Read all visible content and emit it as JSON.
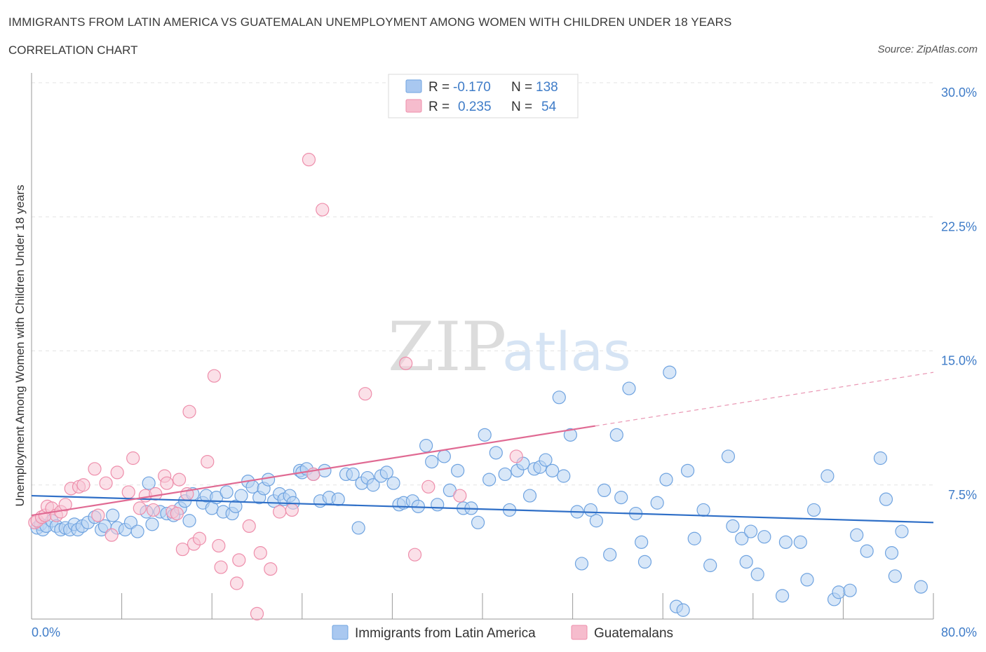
{
  "header": {
    "title": "IMMIGRANTS FROM LATIN AMERICA VS GUATEMALAN UNEMPLOYMENT AMONG WOMEN WITH CHILDREN UNDER 18 YEARS",
    "subtitle": "CORRELATION CHART",
    "source": "Source: ZipAtlas.com"
  },
  "watermark": {
    "zip": "ZIP",
    "atlas": "atlas"
  },
  "legend": {
    "rows": [
      {
        "r_label": "R =",
        "r_value": "-0.170",
        "n_label": "N =",
        "n_value": "138",
        "color": "#a9c8f0"
      },
      {
        "r_label": "R =",
        "r_value": "0.235",
        "n_label": "N =",
        "n_value": "54",
        "color": "#f6bccd"
      }
    ]
  },
  "bottom_legend": {
    "items": [
      {
        "label": "Immigrants from Latin America",
        "color": "#a9c8f0"
      },
      {
        "label": "Guatemalans",
        "color": "#f6bccd"
      }
    ]
  },
  "chart_data": {
    "type": "scatter",
    "ylabel": "Unemployment Among Women with Children Under 18 years",
    "xlabel": "",
    "xlim": [
      0,
      80
    ],
    "ylim": [
      0,
      30
    ],
    "x_tick_labels": [
      {
        "value": 0,
        "label": "0.0%"
      },
      {
        "value": 80,
        "label": "80.0%"
      }
    ],
    "y_tick_labels": [
      {
        "value": 7.5,
        "label": "7.5%"
      },
      {
        "value": 15,
        "label": "15.0%"
      },
      {
        "value": 22.5,
        "label": "22.5%"
      },
      {
        "value": 30,
        "label": "30.0%"
      }
    ],
    "grid": true,
    "legend_placement": "top-center",
    "series": [
      {
        "name": "Immigrants from Latin America",
        "color": "#6fa3e0",
        "fill": "#b8d3f3",
        "trend": {
          "x": [
            0,
            80
          ],
          "y": [
            6.9,
            5.4
          ]
        },
        "points": [
          [
            0.5,
            5.1
          ],
          [
            0.8,
            5.3
          ],
          [
            1.0,
            5.0
          ],
          [
            1.3,
            5.2
          ],
          [
            1.8,
            5.5
          ],
          [
            2.2,
            5.2
          ],
          [
            2.6,
            5.0
          ],
          [
            3.0,
            5.1
          ],
          [
            3.4,
            5.0
          ],
          [
            3.8,
            5.3
          ],
          [
            4.1,
            5.0
          ],
          [
            4.5,
            5.2
          ],
          [
            5.0,
            5.4
          ],
          [
            5.6,
            5.7
          ],
          [
            6.2,
            5.0
          ],
          [
            6.5,
            5.2
          ],
          [
            7.2,
            5.8
          ],
          [
            7.6,
            5.1
          ],
          [
            8.3,
            5.0
          ],
          [
            8.8,
            5.4
          ],
          [
            9.4,
            4.9
          ],
          [
            10.2,
            6.0
          ],
          [
            10.4,
            7.6
          ],
          [
            10.7,
            5.3
          ],
          [
            11.4,
            6.0
          ],
          [
            12.0,
            5.9
          ],
          [
            12.6,
            5.8
          ],
          [
            13.2,
            6.2
          ],
          [
            13.6,
            6.6
          ],
          [
            14.0,
            5.5
          ],
          [
            14.3,
            7.0
          ],
          [
            15.2,
            6.5
          ],
          [
            15.5,
            6.9
          ],
          [
            16.0,
            6.2
          ],
          [
            16.4,
            6.8
          ],
          [
            17.0,
            6.0
          ],
          [
            17.3,
            7.1
          ],
          [
            17.8,
            5.9
          ],
          [
            18.1,
            6.3
          ],
          [
            18.6,
            6.9
          ],
          [
            19.2,
            7.7
          ],
          [
            19.6,
            7.4
          ],
          [
            20.2,
            6.8
          ],
          [
            20.6,
            7.3
          ],
          [
            21.0,
            7.8
          ],
          [
            21.5,
            6.6
          ],
          [
            22.0,
            7.0
          ],
          [
            22.4,
            6.7
          ],
          [
            22.9,
            6.9
          ],
          [
            23.2,
            6.5
          ],
          [
            23.8,
            8.3
          ],
          [
            24.0,
            8.2
          ],
          [
            24.4,
            8.4
          ],
          [
            25.0,
            8.1
          ],
          [
            25.6,
            6.6
          ],
          [
            26.0,
            8.3
          ],
          [
            26.4,
            6.8
          ],
          [
            27.2,
            6.7
          ],
          [
            27.9,
            8.1
          ],
          [
            28.5,
            8.1
          ],
          [
            29.0,
            5.1
          ],
          [
            29.3,
            7.6
          ],
          [
            29.8,
            7.9
          ],
          [
            30.3,
            7.5
          ],
          [
            31.0,
            8.0
          ],
          [
            31.5,
            8.2
          ],
          [
            32.1,
            7.6
          ],
          [
            32.6,
            6.4
          ],
          [
            33.0,
            6.5
          ],
          [
            33.8,
            6.6
          ],
          [
            34.3,
            6.3
          ],
          [
            35.0,
            9.7
          ],
          [
            35.5,
            8.8
          ],
          [
            36.0,
            6.4
          ],
          [
            36.6,
            9.1
          ],
          [
            37.1,
            7.2
          ],
          [
            37.8,
            8.3
          ],
          [
            38.3,
            6.2
          ],
          [
            39.0,
            6.2
          ],
          [
            39.6,
            5.4
          ],
          [
            40.2,
            10.3
          ],
          [
            40.6,
            7.8
          ],
          [
            41.2,
            9.3
          ],
          [
            42.0,
            8.1
          ],
          [
            42.4,
            6.1
          ],
          [
            43.1,
            8.3
          ],
          [
            43.6,
            8.7
          ],
          [
            44.2,
            6.9
          ],
          [
            44.6,
            8.4
          ],
          [
            45.1,
            8.5
          ],
          [
            45.6,
            8.9
          ],
          [
            46.2,
            8.3
          ],
          [
            46.8,
            12.4
          ],
          [
            47.2,
            8.0
          ],
          [
            47.8,
            10.3
          ],
          [
            48.4,
            6.0
          ],
          [
            48.8,
            3.1
          ],
          [
            49.6,
            6.1
          ],
          [
            50.1,
            5.5
          ],
          [
            50.8,
            7.2
          ],
          [
            51.3,
            3.6
          ],
          [
            51.9,
            10.3
          ],
          [
            52.3,
            6.8
          ],
          [
            53.0,
            12.9
          ],
          [
            53.6,
            5.9
          ],
          [
            54.1,
            4.3
          ],
          [
            54.4,
            3.2
          ],
          [
            55.5,
            6.5
          ],
          [
            56.3,
            7.8
          ],
          [
            56.6,
            13.8
          ],
          [
            57.2,
            0.7
          ],
          [
            57.8,
            0.5
          ],
          [
            58.2,
            8.3
          ],
          [
            58.8,
            4.5
          ],
          [
            59.6,
            6.1
          ],
          [
            60.2,
            3.0
          ],
          [
            61.8,
            9.1
          ],
          [
            62.2,
            5.2
          ],
          [
            63.0,
            4.5
          ],
          [
            63.4,
            3.2
          ],
          [
            63.8,
            4.9
          ],
          [
            64.4,
            2.5
          ],
          [
            65.0,
            4.6
          ],
          [
            66.6,
            1.3
          ],
          [
            66.9,
            4.3
          ],
          [
            68.2,
            4.3
          ],
          [
            68.8,
            2.2
          ],
          [
            69.4,
            6.1
          ],
          [
            70.6,
            8.0
          ],
          [
            71.2,
            1.1
          ],
          [
            71.6,
            1.5
          ],
          [
            72.6,
            1.6
          ],
          [
            73.2,
            4.7
          ],
          [
            74.1,
            3.8
          ],
          [
            75.3,
            9.0
          ],
          [
            75.8,
            6.7
          ],
          [
            76.3,
            3.7
          ],
          [
            76.6,
            2.4
          ],
          [
            77.2,
            4.9
          ],
          [
            78.9,
            1.8
          ]
        ]
      },
      {
        "name": "Guatemalans",
        "color": "#ee8eab",
        "fill": "#f8c7d6",
        "trend": {
          "x": [
            0,
            50
          ],
          "y": [
            5.8,
            10.8
          ]
        },
        "trend_dashed": {
          "x": [
            50,
            80
          ],
          "y": [
            10.8,
            13.8
          ]
        },
        "points": [
          [
            0.3,
            5.4
          ],
          [
            0.5,
            5.5
          ],
          [
            0.9,
            5.7
          ],
          [
            1.2,
            5.8
          ],
          [
            1.4,
            6.3
          ],
          [
            1.8,
            6.2
          ],
          [
            2.2,
            5.8
          ],
          [
            2.6,
            6.0
          ],
          [
            3.0,
            6.4
          ],
          [
            3.5,
            7.3
          ],
          [
            4.2,
            7.4
          ],
          [
            4.6,
            7.5
          ],
          [
            5.6,
            8.4
          ],
          [
            5.9,
            5.8
          ],
          [
            6.6,
            7.6
          ],
          [
            7.1,
            4.7
          ],
          [
            7.6,
            8.2
          ],
          [
            8.6,
            7.1
          ],
          [
            9.0,
            9.0
          ],
          [
            9.6,
            6.2
          ],
          [
            10.1,
            6.9
          ],
          [
            10.8,
            6.1
          ],
          [
            11.0,
            7.0
          ],
          [
            11.8,
            8.0
          ],
          [
            12.0,
            7.6
          ],
          [
            12.5,
            6.0
          ],
          [
            12.9,
            5.9
          ],
          [
            13.1,
            7.8
          ],
          [
            13.4,
            3.9
          ],
          [
            13.8,
            7.0
          ],
          [
            14.0,
            11.6
          ],
          [
            14.4,
            4.2
          ],
          [
            14.9,
            4.5
          ],
          [
            15.6,
            8.8
          ],
          [
            16.2,
            13.6
          ],
          [
            16.6,
            4.1
          ],
          [
            16.8,
            2.9
          ],
          [
            18.2,
            2.0
          ],
          [
            18.4,
            3.3
          ],
          [
            19.3,
            5.2
          ],
          [
            20.0,
            0.3
          ],
          [
            20.3,
            3.7
          ],
          [
            21.2,
            2.8
          ],
          [
            22.0,
            6.0
          ],
          [
            23.1,
            6.1
          ],
          [
            24.6,
            25.7
          ],
          [
            25.0,
            8.1
          ],
          [
            25.8,
            22.9
          ],
          [
            29.6,
            12.6
          ],
          [
            33.2,
            14.3
          ],
          [
            34.0,
            3.6
          ],
          [
            35.2,
            7.4
          ],
          [
            38.0,
            6.9
          ],
          [
            43.0,
            9.1
          ]
        ]
      }
    ]
  }
}
